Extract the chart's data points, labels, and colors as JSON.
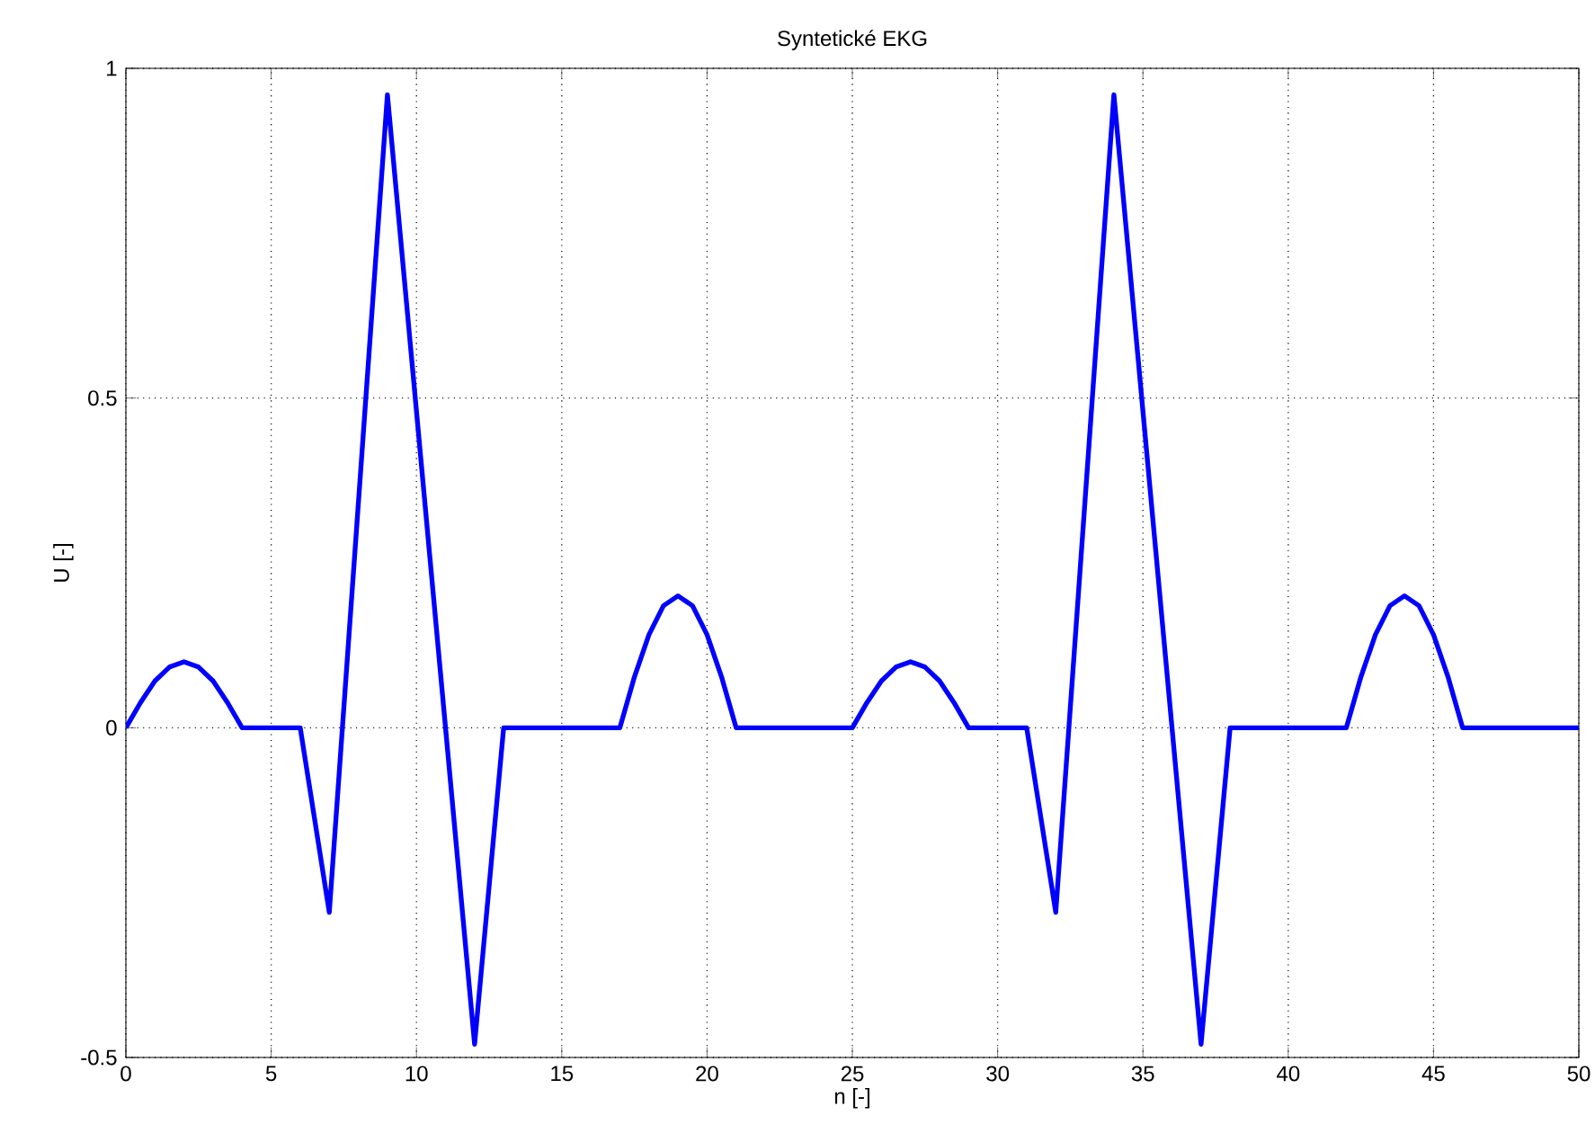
{
  "chart_data": {
    "type": "line",
    "title": "Syntetické EKG",
    "xlabel": "n [-]",
    "ylabel": "U [-]",
    "xlim": [
      0,
      50
    ],
    "ylim": [
      -0.5,
      1
    ],
    "xticks": [
      0,
      5,
      10,
      15,
      20,
      25,
      30,
      35,
      40,
      45,
      50
    ],
    "yticks": [
      -0.5,
      0,
      0.5,
      1
    ],
    "grid": true,
    "line_style": "solid",
    "series": [
      {
        "color": "#0000ff",
        "x": [
          0,
          0.5,
          1,
          1.5,
          2,
          2.5,
          3,
          3.5,
          4,
          6,
          7,
          9,
          12,
          13,
          17,
          17.5,
          18,
          18.5,
          19,
          19.5,
          20,
          20.5,
          21,
          25,
          25.5,
          26,
          26.5,
          27,
          27.5,
          28,
          28.5,
          29,
          31,
          32,
          34,
          37,
          38,
          42,
          42.5,
          43,
          43.5,
          44,
          44.5,
          45,
          45.5,
          46,
          50
        ],
        "values": [
          0,
          0.038,
          0.071,
          0.092,
          0.1,
          0.092,
          0.071,
          0.038,
          0,
          0,
          -0.28,
          0.96,
          -0.48,
          0,
          0,
          0.077,
          0.141,
          0.185,
          0.2,
          0.185,
          0.141,
          0.077,
          0,
          0,
          0.038,
          0.071,
          0.092,
          0.1,
          0.092,
          0.071,
          0.038,
          0,
          0,
          -0.28,
          0.96,
          -0.48,
          0,
          0,
          0.077,
          0.141,
          0.185,
          0.2,
          0.185,
          0.141,
          0.077,
          0,
          0
        ]
      }
    ]
  }
}
